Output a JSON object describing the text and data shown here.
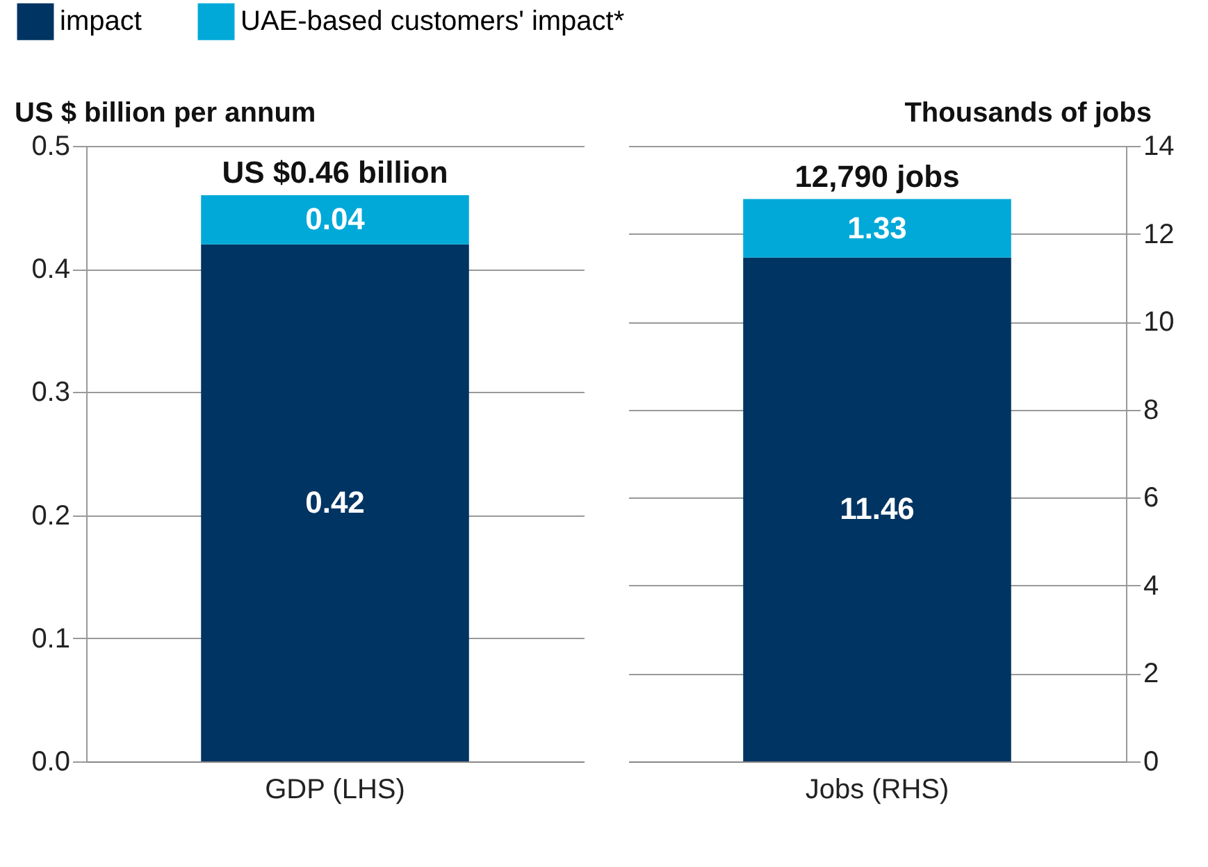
{
  "chart_data": [
    {
      "type": "bar",
      "stacked": true,
      "categories": [
        "GDP (LHS)"
      ],
      "ylabel": "US $ billion per annum",
      "ylim": [
        0,
        0.5
      ],
      "yticks": [
        {
          "value": 0,
          "label": "0.0"
        },
        0.1,
        0.2,
        0.3,
        0.4,
        0.5
      ],
      "grid": "y",
      "legend": "top left",
      "data_labels": true,
      "totals": [
        "US $0.46 billion"
      ],
      "series": [
        {
          "name": "impact",
          "color": "#003462",
          "values": [
            0.42
          ]
        },
        {
          "name": "UAE-based customers' impact*",
          "color": "#00a9d8",
          "values": [
            0.04
          ]
        }
      ]
    },
    {
      "type": "bar",
      "stacked": true,
      "categories": [
        "Jobs (RHS)"
      ],
      "ylabel": "Thousands of jobs",
      "ylim": [
        0,
        14
      ],
      "yticks": [
        0,
        2,
        4,
        6,
        8,
        10,
        12,
        14
      ],
      "grid": "y",
      "data_labels": true,
      "totals": [
        "12,790 jobs"
      ],
      "series": [
        {
          "name": "impact",
          "color": "#003462",
          "values": [
            11.46
          ]
        },
        {
          "name": "UAE-based customers' impact*",
          "color": "#00a9d8",
          "values": [
            1.33
          ]
        }
      ]
    }
  ]
}
